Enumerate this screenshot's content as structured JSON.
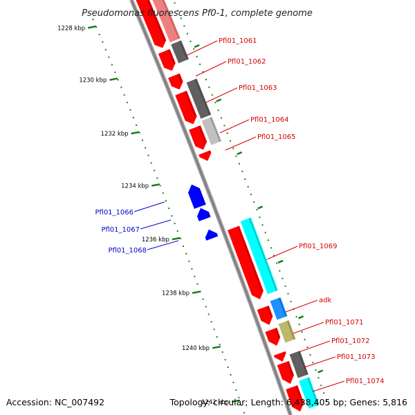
{
  "title": "Pseudomonas fluorescens Pf0-1, complete genome",
  "footer": {
    "accession": "Accession: NC_007492",
    "summary": "Topology: circular; Length: 6,438,405 bp; Genes: 5,816"
  },
  "scale_labels": [
    "1228 kbp",
    "1230 kbp",
    "1232 kbp",
    "1234 kbp",
    "1236 kbp",
    "1238 kbp",
    "1240 kbp",
    "1242 kbp"
  ],
  "forward_genes": [
    "Pfl01_1061",
    "Pfl01_1062",
    "Pfl01_1063",
    "Pfl01_1064",
    "Pfl01_1065",
    "Pfl01_1069",
    "adk",
    "Pfl01_1071",
    "Pfl01_1072",
    "Pfl01_1073",
    "Pfl01_1074"
  ],
  "reverse_genes": [
    "Pfl01_1066",
    "Pfl01_1067",
    "Pfl01_1068"
  ],
  "colors": {
    "forward_cds": "#ff0000",
    "reverse_cds": "#0000ff",
    "backbone": "#808080",
    "tick": "#1a7a1a",
    "cog_pink": "#f08080",
    "cog_dark": "#606060",
    "cog_light": "#c0c0c0",
    "cog_cyan": "#00ffff",
    "cog_sky": "#1e90ff",
    "cog_khaki": "#bdb76b"
  }
}
